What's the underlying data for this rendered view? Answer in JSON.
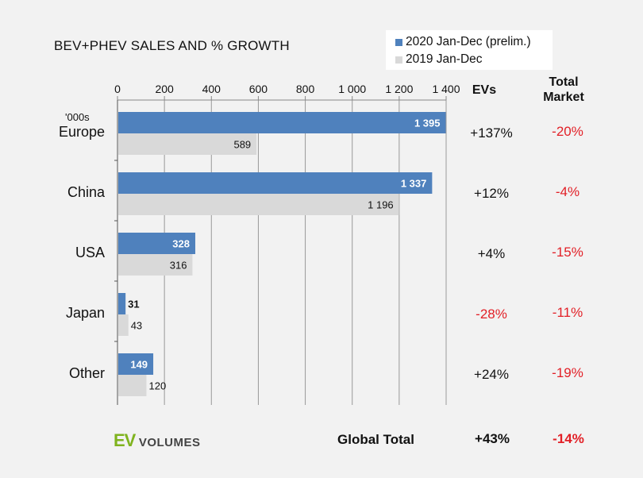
{
  "chart_data": {
    "type": "bar",
    "orientation": "horizontal",
    "title": "BEV+PHEV SALES AND % GROWTH",
    "unit_label": "'000s",
    "categories": [
      "Europe",
      "China",
      "USA",
      "Japan",
      "Other"
    ],
    "series": [
      {
        "name": "2020 Jan-Dec (prelim.)",
        "color": "#4f81bd",
        "values": [
          1395,
          1337,
          328,
          31,
          149
        ],
        "labels": [
          "1 395",
          "1 337",
          "328",
          "31",
          "149"
        ]
      },
      {
        "name": "2019 Jan-Dec",
        "color": "#d9d9d9",
        "values": [
          589,
          1196,
          316,
          43,
          120
        ],
        "labels": [
          "589",
          "1 196",
          "316",
          "43",
          "120"
        ]
      }
    ],
    "xlim": [
      0,
      1400
    ],
    "xticks": [
      0,
      200,
      400,
      600,
      800,
      1000,
      1200,
      1400
    ],
    "xtick_labels": [
      "0",
      "200",
      "400",
      "600",
      "800",
      "1 000",
      "1 200",
      "1 400"
    ],
    "grid": true,
    "columns": {
      "ev_header": "EVs",
      "market_header": "Total Market"
    },
    "ev_growth": [
      "+137%",
      "+12%",
      "+4%",
      "-28%",
      "+24%"
    ],
    "ev_growth_negative": [
      false,
      false,
      false,
      true,
      false
    ],
    "market_growth": [
      "-20%",
      "-4%",
      "-15%",
      "-11%",
      "-19%"
    ],
    "global_total": {
      "label": "Global Total",
      "ev": "+43%",
      "market": "-14%"
    }
  },
  "logo": {
    "ev": "EV",
    "volumes": "VOLUMES"
  },
  "colors": {
    "negative": "#e21f26",
    "accent": "#7fb31e"
  }
}
